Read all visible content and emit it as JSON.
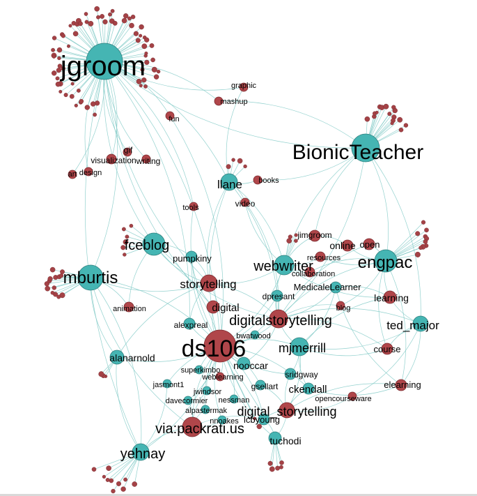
{
  "colors": {
    "user_node": "#45b5b3",
    "tag_node": "#b0464a",
    "edge": "#7fc9c5"
  },
  "nodes": [
    {
      "label": "jgroom",
      "kind": "user",
      "size": "xl"
    },
    {
      "label": "BionicTeacher",
      "kind": "user",
      "size": "l"
    },
    {
      "label": "graphic",
      "kind": "tag",
      "size": "s"
    },
    {
      "label": "mashup",
      "kind": "tag",
      "size": "s"
    },
    {
      "label": "fun",
      "kind": "tag",
      "size": "s"
    },
    {
      "label": "gif",
      "kind": "tag",
      "size": "s"
    },
    {
      "label": "visualization",
      "kind": "tag",
      "size": "s"
    },
    {
      "label": "writing",
      "kind": "tag",
      "size": "s"
    },
    {
      "label": "art",
      "kind": "tag",
      "size": "s"
    },
    {
      "label": "design",
      "kind": "tag",
      "size": "s"
    },
    {
      "label": "llane",
      "kind": "user",
      "size": "m"
    },
    {
      "label": "books",
      "kind": "tag",
      "size": "s"
    },
    {
      "label": "video",
      "kind": "tag",
      "size": "s"
    },
    {
      "label": "tools",
      "kind": "tag",
      "size": "s"
    },
    {
      "label": "fceblog",
      "kind": "user",
      "size": "m"
    },
    {
      "label": "pumpkiny",
      "kind": "user",
      "size": "s"
    },
    {
      "label": "mburtis",
      "kind": "user",
      "size": "m"
    },
    {
      "label": "animation",
      "kind": "tag",
      "size": "s"
    },
    {
      "label": "jimgroom",
      "kind": "tag",
      "size": "s"
    },
    {
      "label": "online",
      "kind": "tag",
      "size": "s"
    },
    {
      "label": "open",
      "kind": "tag",
      "size": "s"
    },
    {
      "label": "resources",
      "kind": "tag",
      "size": "s"
    },
    {
      "label": "collaboration",
      "kind": "tag",
      "size": "s"
    },
    {
      "label": "webwriter",
      "kind": "user",
      "size": "m"
    },
    {
      "label": "engpac",
      "kind": "user",
      "size": "m"
    },
    {
      "label": "storytelling",
      "kind": "tag",
      "size": "m"
    },
    {
      "label": "MedicaleLearner",
      "kind": "user",
      "size": "s"
    },
    {
      "label": "learning",
      "kind": "tag",
      "size": "s"
    },
    {
      "label": "dpresant",
      "kind": "user",
      "size": "s"
    },
    {
      "label": "blog",
      "kind": "tag",
      "size": "s"
    },
    {
      "label": "digital",
      "kind": "tag",
      "size": "s"
    },
    {
      "label": "digitalstorytelling",
      "kind": "tag",
      "size": "m"
    },
    {
      "label": "ted_major",
      "kind": "user",
      "size": "m"
    },
    {
      "label": "alexpreal",
      "kind": "user",
      "size": "s"
    },
    {
      "label": "bwatwood",
      "kind": "user",
      "size": "s"
    },
    {
      "label": "ds106",
      "kind": "tag",
      "size": "l"
    },
    {
      "label": "mjmerrill",
      "kind": "user",
      "size": "m"
    },
    {
      "label": "course",
      "kind": "tag",
      "size": "s"
    },
    {
      "label": "alanarnold",
      "kind": "user",
      "size": "s"
    },
    {
      "label": "superkimbo",
      "kind": "user",
      "size": "s"
    },
    {
      "label": "nooccar",
      "kind": "user",
      "size": "s"
    },
    {
      "label": "weblearning",
      "kind": "tag",
      "size": "s"
    },
    {
      "label": "sridgway",
      "kind": "user",
      "size": "s"
    },
    {
      "label": "jasmont1",
      "kind": "user",
      "size": "s"
    },
    {
      "label": "gsellart",
      "kind": "user",
      "size": "s"
    },
    {
      "label": "ckendall",
      "kind": "user",
      "size": "s"
    },
    {
      "label": "elearning",
      "kind": "tag",
      "size": "s"
    },
    {
      "label": "jwindsor",
      "kind": "user",
      "size": "s"
    },
    {
      "label": "nessman",
      "kind": "user",
      "size": "s"
    },
    {
      "label": "opencourseware",
      "kind": "tag",
      "size": "s"
    },
    {
      "label": "davecormier",
      "kind": "user",
      "size": "s"
    },
    {
      "label": "alpastermak",
      "kind": "user",
      "size": "s"
    },
    {
      "label": "digital_storytelling",
      "kind": "tag",
      "size": "m"
    },
    {
      "label": "nnoakes",
      "kind": "user",
      "size": "s"
    },
    {
      "label": "lcbyoung",
      "kind": "user",
      "size": "s"
    },
    {
      "label": "via:packrati.us",
      "kind": "tag",
      "size": "m"
    },
    {
      "label": "tuchodi",
      "kind": "user",
      "size": "s"
    },
    {
      "label": "yehnay",
      "kind": "user",
      "size": "m"
    }
  ]
}
